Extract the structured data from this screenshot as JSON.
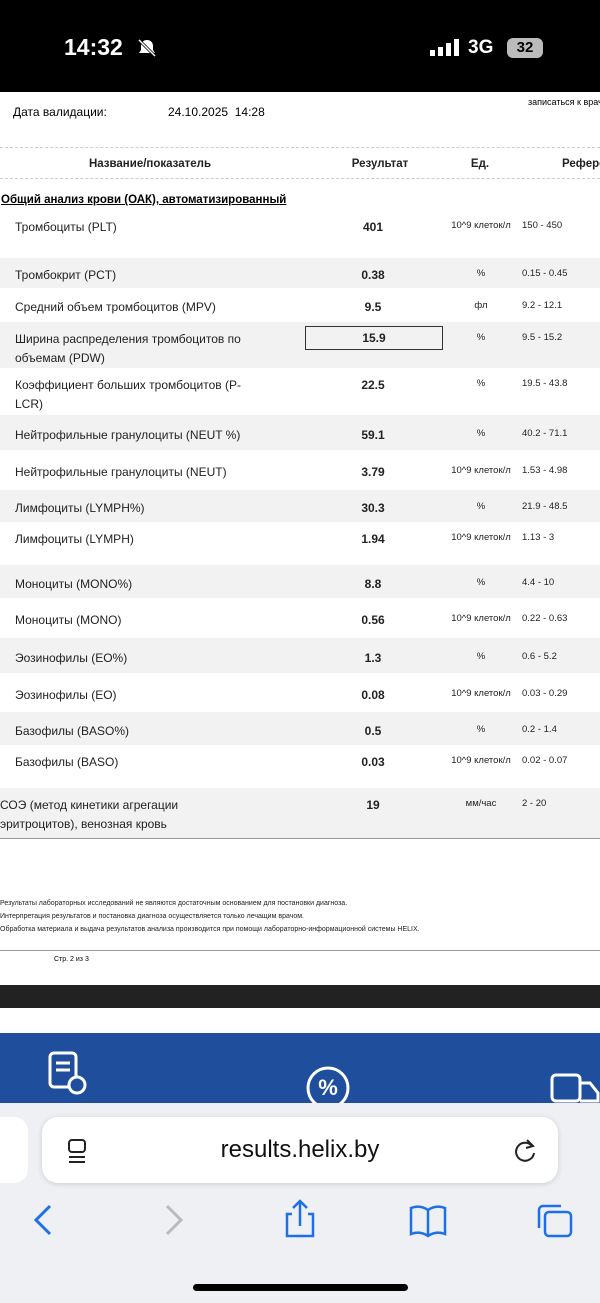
{
  "status_bar": {
    "time": "14:32",
    "network": "3G",
    "battery": "32"
  },
  "report": {
    "validation_label": "Дата валидации:",
    "validation_date": "24.10.2025  14:28",
    "side_note": "записаться к врачу",
    "table": {
      "headers": [
        "Название/показатель",
        "Результат",
        "Ед.",
        "Референсные значения"
      ],
      "section": "Общий анализ крови (ОАК), автоматизированный",
      "rows": [
        [
          "Тромбоциты (PLT)",
          "401",
          "10^9 клеток/л",
          "150 - 450"
        ],
        [
          "Тромбокрит (PCT)",
          "0.38",
          "%",
          "0.15 - 0.45"
        ],
        [
          "Средний объем тромбоцитов (MPV)",
          "9.5",
          "фл",
          "9.2 - 12.1"
        ],
        [
          "Ширина распределения тромбоцитов по объемам (PDW)",
          "15.9",
          "%",
          "9.5 - 15.2"
        ],
        [
          "Коэффициент больших тромбоцитов (P-LCR)",
          "22.5",
          "%",
          "19.5 - 43.8"
        ],
        [
          "Нейтрофильные гранулоциты (NEUT %)",
          "59.1",
          "%",
          "40.2 - 71.1"
        ],
        [
          "Нейтрофильные гранулоциты (NEUT)",
          "3.79",
          "10^9 клеток/л",
          "1.53 - 4.98"
        ],
        [
          "Лимфоциты (LYMPH%)",
          "30.3",
          "%",
          "21.9 - 48.5"
        ],
        [
          "Лимфоциты (LYMPH)",
          "1.94",
          "10^9 клеток/л",
          "1.13 - 3"
        ],
        [
          "Моноциты (MONO%)",
          "8.8",
          "%",
          "4.4 - 10"
        ],
        [
          "Моноциты (MONO)",
          "0.56",
          "10^9 клеток/л",
          "0.22 - 0.63"
        ],
        [
          "Эозинофилы (EO%)",
          "1.3",
          "%",
          "0.6 - 5.2"
        ],
        [
          "Эозинофилы (EO)",
          "0.08",
          "10^9 клеток/л",
          "0.03 - 0.29"
        ],
        [
          "Базофилы (BASO%)",
          "0.5",
          "%",
          "0.2 - 1.4"
        ],
        [
          "Базофилы (BASO)",
          "0.03",
          "10^9 клеток/л",
          "0.02 - 0.07"
        ],
        [
          "СОЭ (метод кинетики агрегации эритроцитов), венозная кровь",
          "19",
          "мм/час",
          "2 - 20"
        ]
      ]
    },
    "notes": [
      "Результаты лабораторных исследований не являются достаточным основанием для постановки диагноза.",
      "Интерпретация результатов и постановка диагноза осуществляется только лечащим врачом.",
      "Обработка материала и выдача результатов анализа производится при помощи лабораторно-информационной системы HELIX."
    ],
    "page": "Стр. 2 из 3"
  },
  "browser": {
    "url": "results.helix.by"
  }
}
